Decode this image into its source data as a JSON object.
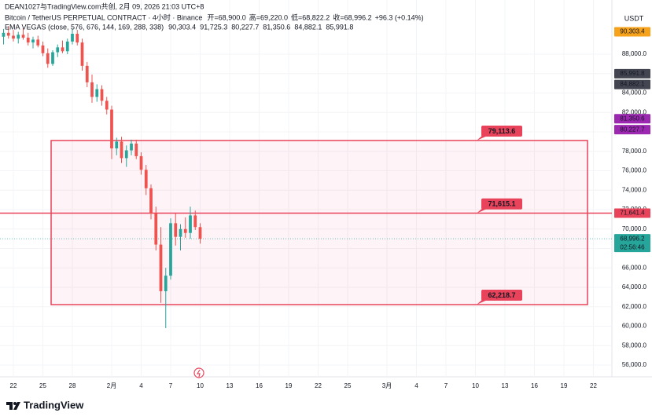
{
  "chart_data": {
    "type": "candlestick",
    "credit": "DEAN1027与TradingView.com共创, 2月 09, 2026 21:03 UTC+8",
    "symbol": "Bitcoin / TetherUS PERPETUAL CONTRACT · 4小时 · Binance",
    "ohlc_text": [
      "开=68,900.0",
      "高=69,220.0",
      "低=68,822.2",
      "收=68,996.2",
      "+96.3 (+0.14%)"
    ],
    "indicator": "EMA VEGAS (close, 576, 676, 144, 169, 288, 338)",
    "indicator_values": [
      {
        "label": "90,303.4",
        "color": "#f7a21b"
      },
      {
        "label": "91,725.3",
        "color": "#f7a21b"
      },
      {
        "label": "80,227.7",
        "color": "#9c27b0"
      },
      {
        "label": "81,350.6",
        "color": "#9c27b0"
      },
      {
        "label": "84,882.1",
        "color": "#131722"
      },
      {
        "label": "85,991.8",
        "color": "#131722"
      }
    ],
    "currency": "USDT",
    "brand": "TradingView",
    "up_color": "#26a69a",
    "down_color": "#ef5350",
    "x": [
      -1,
      -0.5,
      0,
      0.5,
      1,
      1.5,
      2,
      2.5,
      3,
      3.5,
      4,
      4.5,
      5,
      5.5,
      6,
      6.5,
      7,
      7.5,
      8,
      8.5,
      9,
      9.5,
      10,
      10.5,
      11,
      11.5,
      12,
      12.5,
      13,
      13.5,
      14,
      14.5,
      15,
      15.5,
      16,
      16.5,
      17,
      17.5,
      18,
      18.5,
      19
    ],
    "open": [
      89800,
      90200,
      89900,
      89600,
      90000,
      89700,
      89200,
      89500,
      88900,
      88100,
      87000,
      88200,
      88700,
      88300,
      89300,
      90100,
      89200,
      86800,
      85100,
      83600,
      84400,
      83200,
      82300,
      78300,
      79000,
      77300,
      78100,
      78800,
      77500,
      76100,
      74200,
      71600,
      68400,
      63600,
      65200,
      70600,
      69200,
      70000,
      69600,
      71400,
      70200
    ],
    "high": [
      90600,
      90900,
      90500,
      90300,
      90700,
      90200,
      89800,
      89900,
      89300,
      88600,
      88400,
      89000,
      89400,
      89600,
      90600,
      90500,
      89600,
      87200,
      85900,
      84900,
      84800,
      83600,
      82700,
      79400,
      79500,
      78600,
      79200,
      79200,
      77900,
      76600,
      74600,
      72300,
      70200,
      66000,
      71100,
      71600,
      70500,
      71200,
      72300,
      71900,
      70600
    ],
    "low": [
      89000,
      89600,
      89300,
      89100,
      89500,
      88900,
      88600,
      88700,
      87800,
      86600,
      86800,
      87700,
      88100,
      88000,
      89000,
      88900,
      86300,
      84600,
      83000,
      83100,
      82700,
      81800,
      77200,
      77600,
      76800,
      76400,
      77600,
      77200,
      75600,
      73500,
      71000,
      67800,
      62400,
      59800,
      64800,
      68300,
      67800,
      69100,
      69000,
      69900,
      68500
    ],
    "close": [
      90200,
      89900,
      89600,
      90000,
      89700,
      89200,
      89500,
      88900,
      88100,
      87000,
      88200,
      88700,
      88300,
      89300,
      90100,
      89200,
      86800,
      85100,
      83600,
      84400,
      83200,
      82300,
      78300,
      79000,
      77300,
      78100,
      78800,
      77500,
      76100,
      74200,
      71600,
      68400,
      63600,
      65200,
      70600,
      69200,
      70000,
      69600,
      71400,
      70200,
      68996.2
    ],
    "xlim": [
      -1.36,
      60.88
    ],
    "ylim": [
      54788,
      93576
    ],
    "xticks": [
      {
        "value": 0,
        "label": "22"
      },
      {
        "value": 3,
        "label": "25"
      },
      {
        "value": 6,
        "label": "28"
      },
      {
        "value": 10,
        "label": "2月"
      },
      {
        "value": 13,
        "label": "4"
      },
      {
        "value": 16,
        "label": "7"
      },
      {
        "value": 19,
        "label": "10"
      },
      {
        "value": 22,
        "label": "13"
      },
      {
        "value": 25,
        "label": "16"
      },
      {
        "value": 28,
        "label": "19"
      },
      {
        "value": 31,
        "label": "22"
      },
      {
        "value": 34,
        "label": "25"
      },
      {
        "value": 38,
        "label": "3月"
      },
      {
        "value": 41,
        "label": "4"
      },
      {
        "value": 44,
        "label": "7"
      },
      {
        "value": 47,
        "label": "10"
      },
      {
        "value": 50,
        "label": "13"
      },
      {
        "value": 53,
        "label": "16"
      },
      {
        "value": 56,
        "label": "19"
      },
      {
        "value": 59,
        "label": "22"
      }
    ],
    "yticks": [
      {
        "value": 56000,
        "label": "56,000.0"
      },
      {
        "value": 58000,
        "label": "58,000.0"
      },
      {
        "value": 60000,
        "label": "60,000.0"
      },
      {
        "value": 62000,
        "label": "62,000.0"
      },
      {
        "value": 64000,
        "label": "64,000.0"
      },
      {
        "value": 66000,
        "label": "66,000.0"
      },
      {
        "value": 68000,
        "label": "68,000.0"
      },
      {
        "value": 70000,
        "label": "70,000.0"
      },
      {
        "value": 72000,
        "label": "72,000.0"
      },
      {
        "value": 74000,
        "label": "74,000.0"
      },
      {
        "value": 76000,
        "label": "76,000.0"
      },
      {
        "value": 78000,
        "label": "78,000.0"
      },
      {
        "value": 80000,
        "label": "80,000.0"
      },
      {
        "value": 82000,
        "label": "82,000.0"
      },
      {
        "value": 84000,
        "label": "84,000.0"
      },
      {
        "value": 86000,
        "label": "86,000.0"
      },
      {
        "value": 88000,
        "label": "88,000.0"
      }
    ],
    "zone": [
      {
        "value": 79113.6,
        "label": "79,113.6"
      },
      {
        "value": 71615.1,
        "label": "71,615.1"
      },
      {
        "value": 62218.7,
        "label": "62,218.7"
      }
    ],
    "hline": {
      "value": 71641.4,
      "label": "71,641.4",
      "color": "#e8435a"
    },
    "last_price": {
      "value": 68996.2,
      "label": "68,996.2",
      "countdown": "02:56:46",
      "color": "#26a69a"
    },
    "axis_tags": [
      {
        "value": 90303.4,
        "label": "90,303.4",
        "color": "#f7a21b"
      },
      {
        "value": 85991.8,
        "label": "85,991.8",
        "color": "#434651"
      },
      {
        "value": 84882.1,
        "label": "84,882.1",
        "color": "#434651"
      },
      {
        "value": 81350.6,
        "label": "81,350.6",
        "color": "#9c27b0"
      },
      {
        "value": 80227.7,
        "label": "80,227.7",
        "color": "#9c27b0"
      }
    ]
  }
}
